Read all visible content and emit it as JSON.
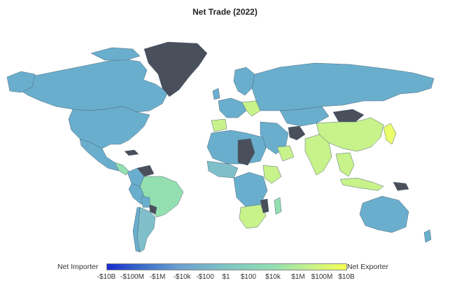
{
  "title": "Net Trade (2022)",
  "legend": {
    "low_label": "Net Importer",
    "high_label": "Net Exporter",
    "ticks": [
      "-$10B",
      "-$100M",
      "-$1M",
      "-$10k",
      "-$100",
      "$1",
      "$100",
      "$10k",
      "$1M",
      "$100M",
      "$10B"
    ]
  },
  "colors": {
    "importer": "#6aaecd",
    "mid_importer": "#7fbfca",
    "mid": "#8fd7b6",
    "exporter": "#c8f28a",
    "strong_exporter": "#eaff6a",
    "no_data": "#4a4f5c",
    "ocean": "#ffffff",
    "border": "#4e6878"
  }
}
